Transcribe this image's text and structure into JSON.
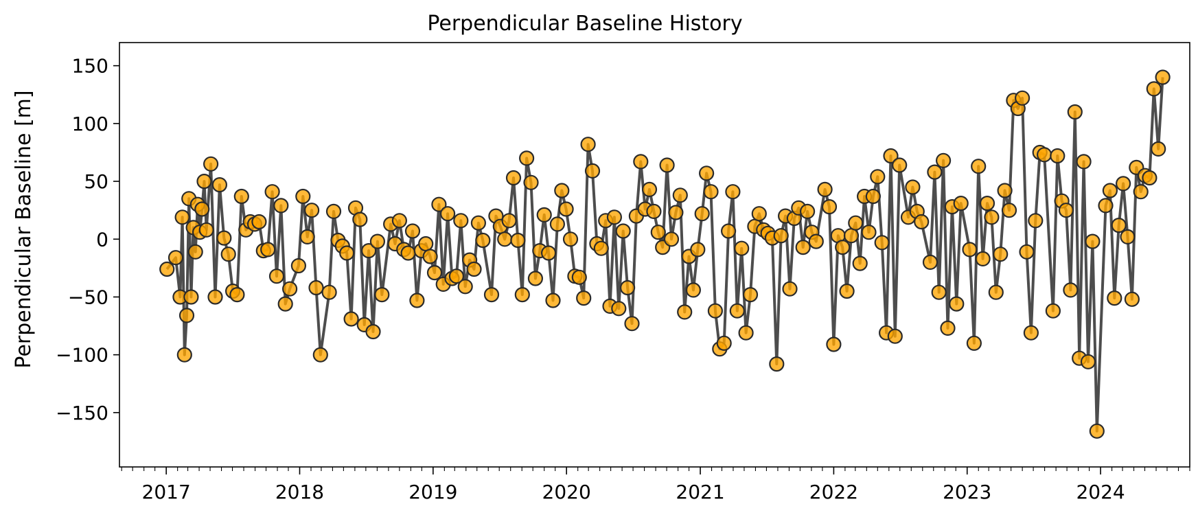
{
  "chart_data": {
    "type": "scatter",
    "title": "Perpendicular Baseline History",
    "xlabel": "",
    "ylabel": "Perpendicular Baseline [m]",
    "x_ticks": [
      "2017",
      "2018",
      "2019",
      "2020",
      "2021",
      "2022",
      "2023",
      "2024"
    ],
    "y_ticks": [
      150,
      100,
      50,
      0,
      -50,
      -100,
      -150
    ],
    "y_tick_labels": [
      "150",
      "100",
      "50",
      "0",
      "−50",
      "−100",
      "−150"
    ],
    "xlim": [
      "2016-08-26",
      "2024-09-01"
    ],
    "ylim": [
      -197,
      170
    ],
    "grid": false,
    "colors": {
      "marker_fill": "#ffa500",
      "marker_edge": "#2b2b2b",
      "line": "#4d4d4d"
    },
    "series": [
      {
        "points": [
          {
            "x": "2017-01-03",
            "y": -26
          },
          {
            "x": "2017-01-27",
            "y": -16
          },
          {
            "x": "2017-02-08",
            "y": -50
          },
          {
            "x": "2017-02-14",
            "y": 19
          },
          {
            "x": "2017-02-20",
            "y": -100
          },
          {
            "x": "2017-02-26",
            "y": -66
          },
          {
            "x": "2017-03-04",
            "y": 35
          },
          {
            "x": "2017-03-10",
            "y": -50
          },
          {
            "x": "2017-03-16",
            "y": 10
          },
          {
            "x": "2017-03-22",
            "y": -11
          },
          {
            "x": "2017-03-28",
            "y": 30
          },
          {
            "x": "2017-04-03",
            "y": 6
          },
          {
            "x": "2017-04-09",
            "y": 26
          },
          {
            "x": "2017-04-15",
            "y": 50
          },
          {
            "x": "2017-04-21",
            "y": 8
          },
          {
            "x": "2017-05-03",
            "y": 65
          },
          {
            "x": "2017-05-15",
            "y": -50
          },
          {
            "x": "2017-05-27",
            "y": 47
          },
          {
            "x": "2017-06-08",
            "y": 1
          },
          {
            "x": "2017-06-20",
            "y": -13
          },
          {
            "x": "2017-07-02",
            "y": -45
          },
          {
            "x": "2017-07-14",
            "y": -48
          },
          {
            "x": "2017-07-26",
            "y": 37
          },
          {
            "x": "2017-08-07",
            "y": 8
          },
          {
            "x": "2017-08-19",
            "y": 15
          },
          {
            "x": "2017-08-31",
            "y": 13
          },
          {
            "x": "2017-09-12",
            "y": 15
          },
          {
            "x": "2017-09-24",
            "y": -10
          },
          {
            "x": "2017-10-06",
            "y": -9
          },
          {
            "x": "2017-10-18",
            "y": 41
          },
          {
            "x": "2017-10-30",
            "y": -32
          },
          {
            "x": "2017-11-11",
            "y": 29
          },
          {
            "x": "2017-11-23",
            "y": -56
          },
          {
            "x": "2017-12-05",
            "y": -43
          },
          {
            "x": "2017-12-29",
            "y": -23
          },
          {
            "x": "2018-01-10",
            "y": 37
          },
          {
            "x": "2018-01-22",
            "y": 2
          },
          {
            "x": "2018-02-03",
            "y": 25
          },
          {
            "x": "2018-02-15",
            "y": -42
          },
          {
            "x": "2018-02-27",
            "y": -100
          },
          {
            "x": "2018-03-23",
            "y": -46
          },
          {
            "x": "2018-04-04",
            "y": 24
          },
          {
            "x": "2018-04-16",
            "y": -1
          },
          {
            "x": "2018-04-28",
            "y": -6
          },
          {
            "x": "2018-05-10",
            "y": -12
          },
          {
            "x": "2018-05-22",
            "y": -69
          },
          {
            "x": "2018-06-03",
            "y": 27
          },
          {
            "x": "2018-06-15",
            "y": 17
          },
          {
            "x": "2018-06-27",
            "y": -74
          },
          {
            "x": "2018-07-09",
            "y": -10
          },
          {
            "x": "2018-07-21",
            "y": -80
          },
          {
            "x": "2018-08-02",
            "y": -2
          },
          {
            "x": "2018-08-14",
            "y": -48
          },
          {
            "x": "2018-09-07",
            "y": 13
          },
          {
            "x": "2018-09-19",
            "y": -4
          },
          {
            "x": "2018-10-01",
            "y": 16
          },
          {
            "x": "2018-10-13",
            "y": -9
          },
          {
            "x": "2018-10-25",
            "y": -12
          },
          {
            "x": "2018-11-06",
            "y": 7
          },
          {
            "x": "2018-11-18",
            "y": -53
          },
          {
            "x": "2018-11-30",
            "y": -10
          },
          {
            "x": "2018-12-12",
            "y": -4
          },
          {
            "x": "2018-12-24",
            "y": -15
          },
          {
            "x": "2019-01-05",
            "y": -29
          },
          {
            "x": "2019-01-17",
            "y": 30
          },
          {
            "x": "2019-01-29",
            "y": -39
          },
          {
            "x": "2019-02-10",
            "y": 22
          },
          {
            "x": "2019-02-22",
            "y": -34
          },
          {
            "x": "2019-03-06",
            "y": -32
          },
          {
            "x": "2019-03-18",
            "y": 16
          },
          {
            "x": "2019-03-30",
            "y": -41
          },
          {
            "x": "2019-04-11",
            "y": -18
          },
          {
            "x": "2019-04-23",
            "y": -26
          },
          {
            "x": "2019-05-05",
            "y": 14
          },
          {
            "x": "2019-05-17",
            "y": -1
          },
          {
            "x": "2019-06-10",
            "y": -48
          },
          {
            "x": "2019-06-22",
            "y": 20
          },
          {
            "x": "2019-07-04",
            "y": 11
          },
          {
            "x": "2019-07-16",
            "y": 0
          },
          {
            "x": "2019-07-28",
            "y": 16
          },
          {
            "x": "2019-08-09",
            "y": 53
          },
          {
            "x": "2019-08-21",
            "y": -1
          },
          {
            "x": "2019-09-02",
            "y": -48
          },
          {
            "x": "2019-09-14",
            "y": 70
          },
          {
            "x": "2019-09-26",
            "y": 49
          },
          {
            "x": "2019-10-08",
            "y": -34
          },
          {
            "x": "2019-10-20",
            "y": -10
          },
          {
            "x": "2019-11-01",
            "y": 21
          },
          {
            "x": "2019-11-13",
            "y": -12
          },
          {
            "x": "2019-11-25",
            "y": -53
          },
          {
            "x": "2019-12-07",
            "y": 13
          },
          {
            "x": "2019-12-19",
            "y": 42
          },
          {
            "x": "2019-12-31",
            "y": 26
          },
          {
            "x": "2020-01-12",
            "y": 0
          },
          {
            "x": "2020-01-24",
            "y": -32
          },
          {
            "x": "2020-02-05",
            "y": -33
          },
          {
            "x": "2020-02-17",
            "y": -51
          },
          {
            "x": "2020-02-29",
            "y": 82
          },
          {
            "x": "2020-03-12",
            "y": 59
          },
          {
            "x": "2020-03-24",
            "y": -4
          },
          {
            "x": "2020-04-05",
            "y": -8
          },
          {
            "x": "2020-04-17",
            "y": 16
          },
          {
            "x": "2020-04-29",
            "y": -58
          },
          {
            "x": "2020-05-11",
            "y": 19
          },
          {
            "x": "2020-05-23",
            "y": -60
          },
          {
            "x": "2020-06-04",
            "y": 7
          },
          {
            "x": "2020-06-16",
            "y": -42
          },
          {
            "x": "2020-06-28",
            "y": -73
          },
          {
            "x": "2020-07-10",
            "y": 20
          },
          {
            "x": "2020-07-22",
            "y": 67
          },
          {
            "x": "2020-08-03",
            "y": 26
          },
          {
            "x": "2020-08-15",
            "y": 43
          },
          {
            "x": "2020-08-27",
            "y": 24
          },
          {
            "x": "2020-09-08",
            "y": 6
          },
          {
            "x": "2020-09-20",
            "y": -7
          },
          {
            "x": "2020-10-02",
            "y": 64
          },
          {
            "x": "2020-10-14",
            "y": 0
          },
          {
            "x": "2020-10-26",
            "y": 23
          },
          {
            "x": "2020-11-07",
            "y": 38
          },
          {
            "x": "2020-11-19",
            "y": -63
          },
          {
            "x": "2020-12-01",
            "y": -15
          },
          {
            "x": "2020-12-13",
            "y": -44
          },
          {
            "x": "2020-12-25",
            "y": -9
          },
          {
            "x": "2021-01-06",
            "y": 22
          },
          {
            "x": "2021-01-18",
            "y": 57
          },
          {
            "x": "2021-01-30",
            "y": 41
          },
          {
            "x": "2021-02-11",
            "y": -62
          },
          {
            "x": "2021-02-23",
            "y": -95
          },
          {
            "x": "2021-03-07",
            "y": -90
          },
          {
            "x": "2021-03-19",
            "y": 7
          },
          {
            "x": "2021-03-31",
            "y": 41
          },
          {
            "x": "2021-04-12",
            "y": -62
          },
          {
            "x": "2021-04-24",
            "y": -8
          },
          {
            "x": "2021-05-06",
            "y": -81
          },
          {
            "x": "2021-05-18",
            "y": -48
          },
          {
            "x": "2021-05-30",
            "y": 11
          },
          {
            "x": "2021-06-11",
            "y": 22
          },
          {
            "x": "2021-06-23",
            "y": 8
          },
          {
            "x": "2021-07-05",
            "y": 5
          },
          {
            "x": "2021-07-17",
            "y": 1
          },
          {
            "x": "2021-07-29",
            "y": -108
          },
          {
            "x": "2021-08-10",
            "y": 3
          },
          {
            "x": "2021-08-22",
            "y": 20
          },
          {
            "x": "2021-09-03",
            "y": -43
          },
          {
            "x": "2021-09-15",
            "y": 18
          },
          {
            "x": "2021-09-27",
            "y": 27
          },
          {
            "x": "2021-10-09",
            "y": -7
          },
          {
            "x": "2021-10-21",
            "y": 24
          },
          {
            "x": "2021-11-02",
            "y": 6
          },
          {
            "x": "2021-11-14",
            "y": -2
          },
          {
            "x": "2021-12-08",
            "y": 43
          },
          {
            "x": "2021-12-20",
            "y": 28
          },
          {
            "x": "2022-01-01",
            "y": -91
          },
          {
            "x": "2022-01-13",
            "y": 3
          },
          {
            "x": "2022-01-25",
            "y": -7
          },
          {
            "x": "2022-02-06",
            "y": -45
          },
          {
            "x": "2022-02-18",
            "y": 3
          },
          {
            "x": "2022-03-02",
            "y": 14
          },
          {
            "x": "2022-03-14",
            "y": -21
          },
          {
            "x": "2022-03-26",
            "y": 37
          },
          {
            "x": "2022-04-07",
            "y": 6
          },
          {
            "x": "2022-04-19",
            "y": 37
          },
          {
            "x": "2022-05-01",
            "y": 54
          },
          {
            "x": "2022-05-13",
            "y": -3
          },
          {
            "x": "2022-05-25",
            "y": -81
          },
          {
            "x": "2022-06-06",
            "y": 72
          },
          {
            "x": "2022-06-18",
            "y": -84
          },
          {
            "x": "2022-06-30",
            "y": 64
          },
          {
            "x": "2022-07-24",
            "y": 19
          },
          {
            "x": "2022-08-05",
            "y": 45
          },
          {
            "x": "2022-08-17",
            "y": 24
          },
          {
            "x": "2022-08-29",
            "y": 15
          },
          {
            "x": "2022-09-22",
            "y": -20
          },
          {
            "x": "2022-10-04",
            "y": 58
          },
          {
            "x": "2022-10-16",
            "y": -46
          },
          {
            "x": "2022-10-28",
            "y": 68
          },
          {
            "x": "2022-11-09",
            "y": -77
          },
          {
            "x": "2022-11-21",
            "y": 28
          },
          {
            "x": "2022-12-03",
            "y": -56
          },
          {
            "x": "2022-12-15",
            "y": 31
          },
          {
            "x": "2023-01-08",
            "y": -9
          },
          {
            "x": "2023-01-20",
            "y": -90
          },
          {
            "x": "2023-02-01",
            "y": 63
          },
          {
            "x": "2023-02-13",
            "y": -17
          },
          {
            "x": "2023-02-25",
            "y": 31
          },
          {
            "x": "2023-03-09",
            "y": 19
          },
          {
            "x": "2023-03-21",
            "y": -46
          },
          {
            "x": "2023-04-02",
            "y": -13
          },
          {
            "x": "2023-04-14",
            "y": 42
          },
          {
            "x": "2023-04-26",
            "y": 25
          },
          {
            "x": "2023-05-08",
            "y": 120
          },
          {
            "x": "2023-05-20",
            "y": 113
          },
          {
            "x": "2023-06-01",
            "y": 122
          },
          {
            "x": "2023-06-13",
            "y": -11
          },
          {
            "x": "2023-06-25",
            "y": -81
          },
          {
            "x": "2023-07-07",
            "y": 16
          },
          {
            "x": "2023-07-19",
            "y": 75
          },
          {
            "x": "2023-07-31",
            "y": 73
          },
          {
            "x": "2023-08-24",
            "y": -62
          },
          {
            "x": "2023-09-05",
            "y": 72
          },
          {
            "x": "2023-09-17",
            "y": 33
          },
          {
            "x": "2023-09-29",
            "y": 25
          },
          {
            "x": "2023-10-11",
            "y": -44
          },
          {
            "x": "2023-10-23",
            "y": 110
          },
          {
            "x": "2023-11-04",
            "y": -103
          },
          {
            "x": "2023-11-16",
            "y": 67
          },
          {
            "x": "2023-11-28",
            "y": -106
          },
          {
            "x": "2023-12-10",
            "y": -2
          },
          {
            "x": "2023-12-22",
            "y": -166
          },
          {
            "x": "2024-01-15",
            "y": 29
          },
          {
            "x": "2024-01-27",
            "y": 42
          },
          {
            "x": "2024-02-08",
            "y": -51
          },
          {
            "x": "2024-02-20",
            "y": 12
          },
          {
            "x": "2024-03-03",
            "y": 48
          },
          {
            "x": "2024-03-15",
            "y": 2
          },
          {
            "x": "2024-03-27",
            "y": -52
          },
          {
            "x": "2024-04-08",
            "y": 62
          },
          {
            "x": "2024-04-20",
            "y": 41
          },
          {
            "x": "2024-05-02",
            "y": 55
          },
          {
            "x": "2024-05-14",
            "y": 53
          },
          {
            "x": "2024-05-26",
            "y": 130
          },
          {
            "x": "2024-06-07",
            "y": 78
          },
          {
            "x": "2024-06-19",
            "y": 140
          }
        ]
      }
    ]
  }
}
